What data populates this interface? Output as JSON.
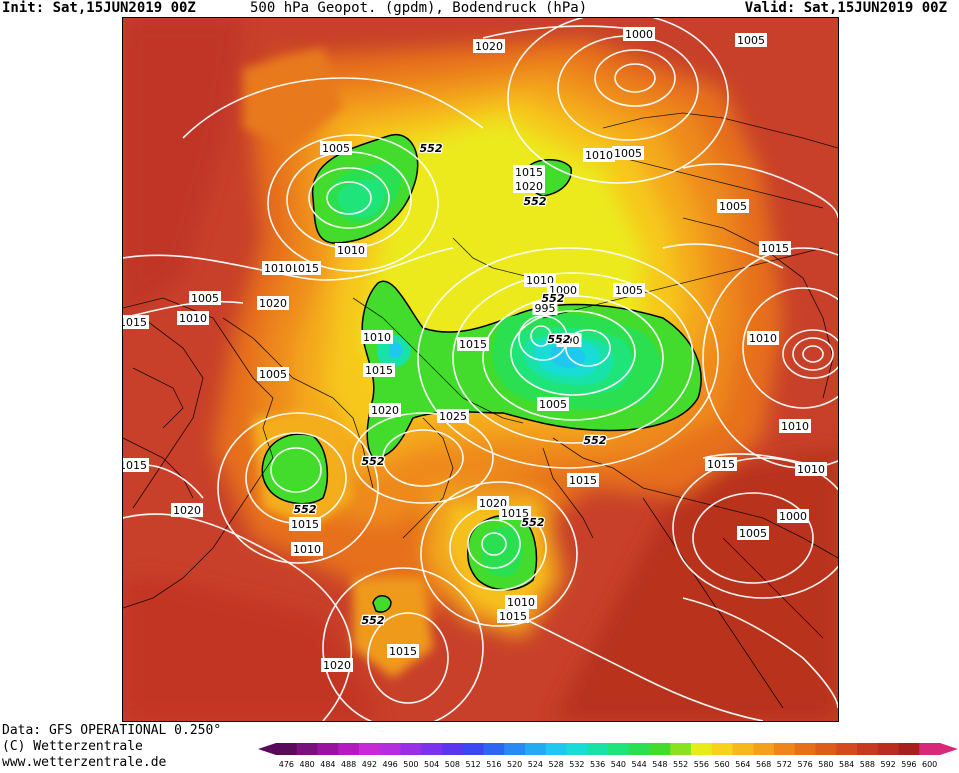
{
  "header": {
    "init": "Init: Sat,15JUN2019 00Z",
    "title": "500 hPa Geopot. (gpdm), Bodendruck (hPa)",
    "valid": "Valid: Sat,15JUN2019 00Z"
  },
  "footer": {
    "data_source": "Data: GFS OPERATIONAL 0.250°",
    "copyright": "(C) Wetterzentrale",
    "url": "www.wetterzentrale.de"
  },
  "legend": {
    "values": [
      "476",
      "480",
      "484",
      "488",
      "492",
      "496",
      "500",
      "504",
      "508",
      "512",
      "516",
      "520",
      "524",
      "528",
      "532",
      "536",
      "540",
      "544",
      "548",
      "552",
      "556",
      "560",
      "564",
      "568",
      "572",
      "576",
      "580",
      "584",
      "588",
      "592",
      "596",
      "600"
    ],
    "colors": [
      "#5a0a5a",
      "#7a107e",
      "#9a12a0",
      "#b41abf",
      "#c828d6",
      "#b42ee0",
      "#9a2ee8",
      "#7a32ee",
      "#5a36f0",
      "#3c46f2",
      "#2e66f4",
      "#2a8af4",
      "#24aaf2",
      "#1ec8ee",
      "#18dcd6",
      "#18e2a8",
      "#1ee47a",
      "#2ae050",
      "#44dc2c",
      "#8ae21e",
      "#e6ec1a",
      "#f6d21a",
      "#f6b81c",
      "#f4a01c",
      "#ee861a",
      "#e67018",
      "#de5c1a",
      "#d44a1c",
      "#c83a1e",
      "#ba2c1e",
      "#a8201e",
      "#d82878"
    ]
  },
  "map": {
    "contour_labels": [
      {
        "text": "1020"
      },
      {
        "text": "1000"
      },
      {
        "text": "1005"
      },
      {
        "text": "1005"
      },
      {
        "text": "1010"
      },
      {
        "text": "1005"
      },
      {
        "text": "1015"
      },
      {
        "text": "1020"
      },
      {
        "text": "1010"
      },
      {
        "text": "1015"
      },
      {
        "text": "1010"
      },
      {
        "text": "1015"
      },
      {
        "text": "1005"
      },
      {
        "text": "1010"
      },
      {
        "text": "1000"
      },
      {
        "text": "1005"
      },
      {
        "text": "995"
      },
      {
        "text": "990"
      },
      {
        "text": "1010"
      },
      {
        "text": "1015"
      },
      {
        "text": "1010"
      },
      {
        "text": "1015"
      },
      {
        "text": "1020"
      },
      {
        "text": "1005"
      },
      {
        "text": "1015"
      },
      {
        "text": "1005"
      },
      {
        "text": "1025"
      },
      {
        "text": "1010"
      },
      {
        "text": "1015"
      },
      {
        "text": "1010"
      },
      {
        "text": "1015"
      },
      {
        "text": "1010"
      },
      {
        "text": "1015"
      },
      {
        "text": "1020"
      },
      {
        "text": "1015"
      },
      {
        "text": "1000"
      },
      {
        "text": "1020"
      },
      {
        "text": "1005"
      },
      {
        "text": "1005"
      },
      {
        "text": "1010"
      },
      {
        "text": "1010"
      },
      {
        "text": "1015"
      },
      {
        "text": "1020"
      },
      {
        "text": "1015"
      },
      {
        "text": "1020"
      },
      {
        "text": "1015"
      }
    ],
    "geopotential_labels": [
      {
        "text": "552"
      },
      {
        "text": "552"
      },
      {
        "text": "552"
      },
      {
        "text": "552"
      },
      {
        "text": "552"
      },
      {
        "text": "552"
      },
      {
        "text": "552"
      },
      {
        "text": "552"
      },
      {
        "text": "552"
      }
    ]
  }
}
